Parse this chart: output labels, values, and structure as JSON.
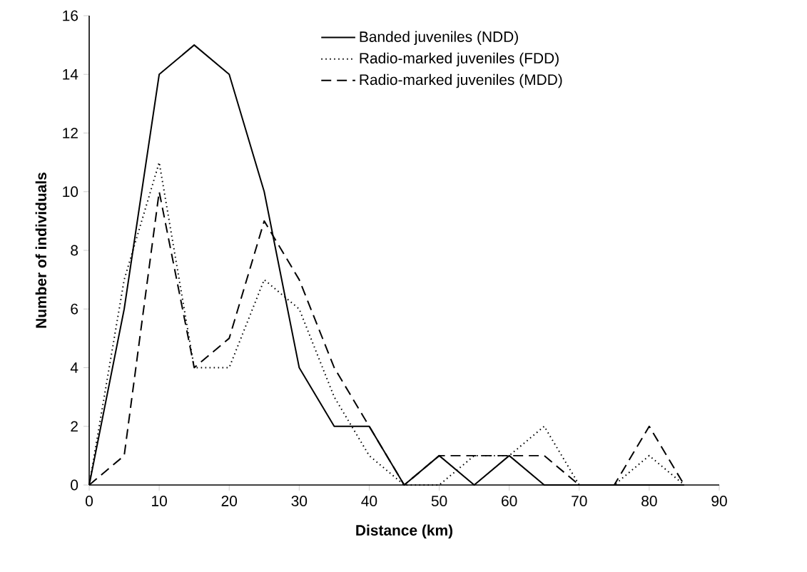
{
  "chart_data": {
    "type": "line",
    "xlabel": "Distance (km)",
    "ylabel": "Number of individuals",
    "x": [
      0,
      5,
      10,
      15,
      20,
      25,
      30,
      35,
      40,
      45,
      50,
      55,
      60,
      65,
      70,
      75,
      80,
      85
    ],
    "series": [
      {
        "name": "Banded juveniles (NDD)",
        "color": "#000000",
        "line_style": "solid",
        "values": [
          0,
          6,
          14,
          15,
          14,
          10,
          4,
          2,
          2,
          0,
          1,
          0,
          1,
          0,
          0,
          0,
          0,
          0
        ]
      },
      {
        "name": "Radio-marked juveniles (FDD)",
        "color": "#000000",
        "line_style": "dotted",
        "values": [
          0,
          7,
          11,
          4,
          4,
          7,
          6,
          3,
          1,
          0,
          0,
          1,
          1,
          2,
          0,
          0,
          1,
          0
        ]
      },
      {
        "name": "Radio-marked juveniles (MDD)",
        "color": "#000000",
        "line_style": "dashed",
        "values": [
          0,
          1,
          10,
          4,
          5,
          9,
          7,
          4,
          2,
          0,
          1,
          1,
          1,
          1,
          0,
          0,
          2,
          0
        ]
      }
    ],
    "xlim": [
      0,
      90
    ],
    "xticks": [
      0,
      10,
      20,
      30,
      40,
      50,
      60,
      70,
      80,
      90
    ],
    "ylim": [
      0,
      16
    ],
    "yticks": [
      0,
      2,
      4,
      6,
      8,
      10,
      12,
      14,
      16
    ],
    "grid": false,
    "legend": "top right"
  }
}
